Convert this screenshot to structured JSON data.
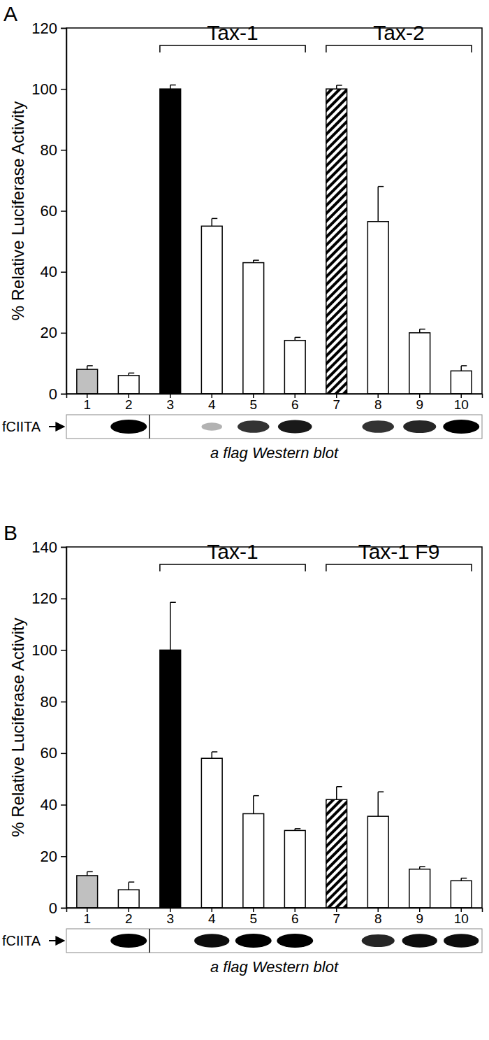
{
  "chart_data": [
    {
      "type": "bar",
      "title": "A",
      "y_label": "% Relative Luciferase Activity",
      "categories": [
        "1",
        "2",
        "3",
        "4",
        "5",
        "6",
        "7",
        "8",
        "9",
        "10"
      ],
      "values": [
        8,
        6,
        100,
        55,
        43,
        17.5,
        100,
        56.5,
        20,
        7.5
      ],
      "errors": [
        1.2,
        0.8,
        1.3,
        2.5,
        0.8,
        1,
        1.2,
        11.5,
        1.2,
        1.7
      ],
      "colors": [
        "#c0c0c0",
        "#ffffff",
        "#000000",
        "#ffffff",
        "#ffffff",
        "#ffffff",
        "hatched",
        "#ffffff",
        "#ffffff",
        "#ffffff"
      ],
      "ylim": [
        0,
        120
      ],
      "yticks": [
        0,
        20,
        40,
        60,
        80,
        100,
        120
      ],
      "groups": [
        {
          "label": "Tax-1",
          "categories": [
            "3",
            "4",
            "5",
            "6"
          ]
        },
        {
          "label": "Tax-2",
          "categories": [
            "7",
            "8",
            "9",
            "10"
          ]
        }
      ],
      "blot": {
        "label": "fCIITA",
        "caption": "a flag Western blot",
        "bands": [
          0,
          1,
          0,
          0.3,
          0.8,
          0.9,
          0,
          0.8,
          0.85,
          1
        ]
      }
    },
    {
      "type": "bar",
      "title": "B",
      "y_label": "% Relative Luciferase Activity",
      "categories": [
        "1",
        "2",
        "3",
        "4",
        "5",
        "6",
        "7",
        "8",
        "9",
        "10"
      ],
      "values": [
        12.5,
        7,
        100,
        58,
        36.5,
        30,
        42,
        35.5,
        15,
        10.5
      ],
      "errors": [
        1.5,
        3,
        18.5,
        2.5,
        7,
        0.7,
        5,
        9.5,
        1,
        1
      ],
      "colors": [
        "#c0c0c0",
        "#ffffff",
        "#000000",
        "#ffffff",
        "#ffffff",
        "#ffffff",
        "hatched",
        "#ffffff",
        "#ffffff",
        "#ffffff"
      ],
      "ylim": [
        0,
        140
      ],
      "yticks": [
        0,
        20,
        40,
        60,
        80,
        100,
        120,
        140
      ],
      "groups": [
        {
          "label": "Tax-1",
          "categories": [
            "3",
            "4",
            "5",
            "6"
          ]
        },
        {
          "label": "Tax-1 F9",
          "categories": [
            "7",
            "8",
            "9",
            "10"
          ]
        }
      ],
      "blot": {
        "label": "fCIITA",
        "caption": "a flag Western blot",
        "bands": [
          0,
          1,
          0,
          0.95,
          1,
          1,
          0,
          0.85,
          0.95,
          0.95
        ]
      }
    }
  ]
}
